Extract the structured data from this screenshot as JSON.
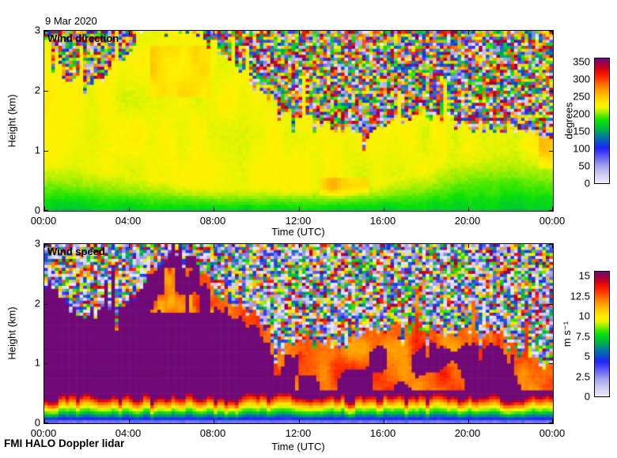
{
  "title": "9 Mar 2020",
  "footer": "FMI HALO Doppler lidar",
  "colormap": {
    "stops": [
      [
        0.0,
        "#eceaf8"
      ],
      [
        0.07,
        "#cccbf2"
      ],
      [
        0.14,
        "#a0a0ee"
      ],
      [
        0.2,
        "#6a66f2"
      ],
      [
        0.278,
        "#2222f8"
      ],
      [
        0.33,
        "#0a54c8"
      ],
      [
        0.39,
        "#008c8c"
      ],
      [
        0.4167,
        "#00a55a"
      ],
      [
        0.46,
        "#00c832"
      ],
      [
        0.5,
        "#0ae00a"
      ],
      [
        0.54,
        "#55ea00"
      ],
      [
        0.57,
        "#a8f000"
      ],
      [
        0.6,
        "#e6f400"
      ],
      [
        0.625,
        "#fff200"
      ],
      [
        0.66,
        "#ffe000"
      ],
      [
        0.694,
        "#ffc800"
      ],
      [
        0.75,
        "#ff9900"
      ],
      [
        0.8,
        "#ff6600"
      ],
      [
        0.845,
        "#ff3000"
      ],
      [
        0.89,
        "#ee0f00"
      ],
      [
        0.93,
        "#c40024"
      ],
      [
        0.97,
        "#96004c"
      ],
      [
        1.0,
        "#700a78"
      ]
    ]
  },
  "chart_data": [
    {
      "type": "heatmap",
      "label": "Wind direction",
      "xlabel": "Time (UTC)",
      "ylabel": "Height (km)",
      "x_tick_labels": [
        "00:00",
        "04:00",
        "08:00",
        "12:00",
        "16:00",
        "20:00",
        "00:00"
      ],
      "x_tick_hours": [
        0,
        4,
        8,
        12,
        16,
        20,
        24
      ],
      "y_tick_labels": [
        "0",
        "1",
        "2",
        "3"
      ],
      "y_tick_values": [
        0,
        1,
        2,
        3
      ],
      "xlim_hours": [
        0,
        24
      ],
      "ylim_km": [
        0,
        3
      ],
      "colorbar": {
        "label": "degrees",
        "tick_labels": [
          "0",
          "50",
          "100",
          "150",
          "200",
          "250",
          "300",
          "350"
        ],
        "tick_values": [
          0,
          50,
          100,
          150,
          200,
          250,
          300,
          350
        ],
        "vmin": 0,
        "vmax": 360
      },
      "grid": {
        "cols": 144,
        "rows": 60
      },
      "seed": 7,
      "value_scale": 360,
      "signal_top_km": [
        2.95,
        2.2,
        2.05,
        2.3,
        2.75,
        3.0,
        3.0,
        3.0,
        2.75,
        2.35,
        2.0,
        1.75,
        1.6,
        1.45,
        1.35,
        1.3,
        1.35,
        1.5,
        1.6,
        1.5,
        1.35,
        1.4,
        1.35,
        1.3,
        1.1
      ],
      "field": {
        "kind": "direction",
        "base_deg": 222,
        "base_var": 18,
        "surface_deg": 168,
        "surface_var": 22,
        "surface_depth_km": [
          0.45,
          0.4,
          0.38,
          0.35,
          0.3,
          0.28,
          0.25,
          0.22,
          0.2,
          0.2,
          0.2,
          0.2,
          0.2,
          0.2,
          0.2,
          0.22,
          0.25,
          0.3,
          0.35,
          0.45,
          0.55,
          0.6,
          0.6,
          0.55,
          0.5
        ],
        "patches": [
          {
            "t0": 5.0,
            "t1": 7.8,
            "h0": 1.9,
            "h1": 2.75,
            "dv": 20
          },
          {
            "t0": 13.0,
            "t1": 15.3,
            "h0": 0.1,
            "h1": 0.55,
            "dv": 26
          },
          {
            "t0": 23.25,
            "t1": 23.95,
            "h0": 0.7,
            "h1": 1.35,
            "dv": 30
          }
        ]
      },
      "noise": {
        "kind": "uniform",
        "max": 360,
        "pow": 1.0
      }
    },
    {
      "type": "heatmap",
      "label": "Wind speed",
      "xlabel": "Time (UTC)",
      "ylabel": "Height (km)",
      "x_tick_labels": [
        "00:00",
        "04:00",
        "08:00",
        "12:00",
        "16:00",
        "20:00",
        "00:00"
      ],
      "x_tick_hours": [
        0,
        4,
        8,
        12,
        16,
        20,
        24
      ],
      "y_tick_labels": [
        "0",
        "1",
        "2",
        "3"
      ],
      "y_tick_values": [
        0,
        1,
        2,
        3
      ],
      "xlim_hours": [
        0,
        24
      ],
      "ylim_km": [
        0,
        3
      ],
      "colorbar": {
        "label": "m s⁻¹",
        "tick_labels": [
          "0",
          "2.5",
          "5",
          "7.5",
          "10",
          "12.5",
          "15"
        ],
        "tick_values": [
          0,
          2.5,
          5,
          7.5,
          10,
          12.5,
          15
        ],
        "vmin": 0,
        "vmax": 15.5
      },
      "grid": {
        "cols": 144,
        "rows": 60
      },
      "seed": 13,
      "value_scale": 15.5,
      "signal_top_km": [
        2.55,
        1.9,
        1.8,
        1.85,
        2.05,
        2.6,
        2.9,
        2.8,
        2.15,
        1.95,
        1.75,
        1.2,
        1.5,
        1.3,
        1.35,
        1.5,
        1.55,
        1.6,
        1.6,
        1.55,
        1.5,
        1.45,
        1.3,
        1.05,
        0.9
      ],
      "field": {
        "kind": "speed",
        "saturate": 15.6,
        "profile_h": [
          0,
          0.09,
          0.18,
          0.27,
          0.36,
          0.44
        ],
        "profile_v": [
          2.2,
          5.0,
          7.8,
          10.2,
          13.0,
          15.6
        ],
        "afternoon_start_h": 11.8,
        "band_base": 12.4,
        "band_var": 2.6,
        "band_min_h": 0.55,
        "rim_depth": 0.2,
        "rim_value": 12.6,
        "plume": {
          "t0": 4.6,
          "t1": 7.9,
          "h0": 1.85,
          "h1": 2.6,
          "v": 12.0
        },
        "columns": [
          {
            "t0": 10.75,
            "t1": 11.1,
            "h0": 0.8,
            "h1": 1.5,
            "v": 12.3
          }
        ]
      },
      "noise": {
        "kind": "lowbias",
        "max": 15.4,
        "pow": 1.55
      }
    }
  ],
  "layout_note": "FMI HALO Doppler lidar daily quicklook: wind direction (top) and wind speed (bottom) vs time and height"
}
